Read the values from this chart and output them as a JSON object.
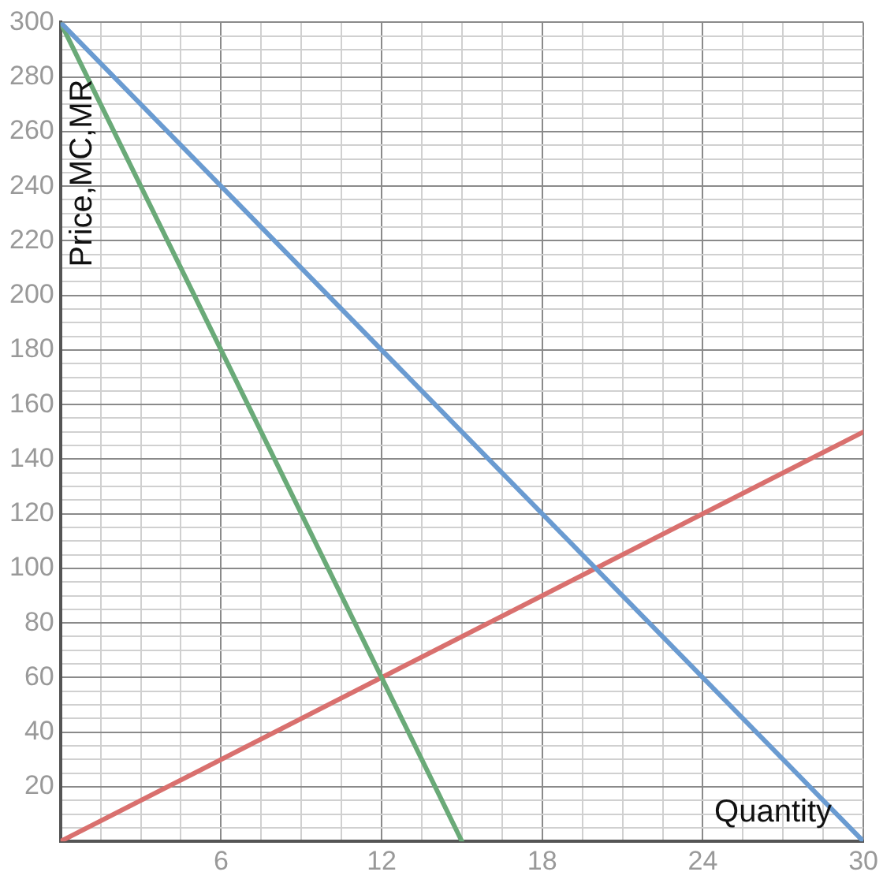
{
  "chart_data": {
    "type": "line",
    "xlabel": "Quantity",
    "ylabel": "Price,MC,MR",
    "series": [
      {
        "color": "#6a9bd1",
        "x": [
          0,
          30
        ],
        "values": [
          300,
          0
        ]
      },
      {
        "color": "#6aaa78",
        "x": [
          0,
          15
        ],
        "values": [
          300,
          0
        ]
      },
      {
        "color": "#d9706e",
        "x": [
          0,
          30
        ],
        "values": [
          0,
          150
        ]
      }
    ],
    "xlim": [
      0,
      30
    ],
    "ylim": [
      0,
      300
    ],
    "xticks": [
      {
        "value": 0,
        "label": null
      },
      {
        "value": 1.5,
        "label": null
      },
      {
        "value": 3,
        "label": null
      },
      {
        "value": 4.5,
        "label": null
      },
      6,
      {
        "value": 7.5,
        "label": null
      },
      {
        "value": 9,
        "label": null
      },
      {
        "value": 10.5,
        "label": null
      },
      12,
      {
        "value": 13.5,
        "label": null
      },
      {
        "value": 15,
        "label": null
      },
      {
        "value": 16.5,
        "label": null
      },
      18,
      {
        "value": 19.5,
        "label": null
      },
      {
        "value": 21,
        "label": null
      },
      {
        "value": 22.5,
        "label": null
      },
      24,
      {
        "value": 25.5,
        "label": null
      },
      {
        "value": 27,
        "label": null
      },
      {
        "value": 28.5,
        "label": null
      },
      30
    ],
    "yticks": [
      {
        "value": 0,
        "label": null
      },
      {
        "value": 5,
        "label": null
      },
      {
        "value": 10,
        "label": null
      },
      {
        "value": 15,
        "label": null
      },
      20,
      {
        "value": 25,
        "label": null
      },
      {
        "value": 30,
        "label": null
      },
      {
        "value": 35,
        "label": null
      },
      40,
      {
        "value": 45,
        "label": null
      },
      {
        "value": 50,
        "label": null
      },
      {
        "value": 55,
        "label": null
      },
      60,
      {
        "value": 65,
        "label": null
      },
      {
        "value": 70,
        "label": null
      },
      {
        "value": 75,
        "label": null
      },
      80,
      {
        "value": 85,
        "label": null
      },
      {
        "value": 90,
        "label": null
      },
      {
        "value": 95,
        "label": null
      },
      100,
      {
        "value": 105,
        "label": null
      },
      {
        "value": 110,
        "label": null
      },
      {
        "value": 115,
        "label": null
      },
      120,
      {
        "value": 125,
        "label": null
      },
      {
        "value": 130,
        "label": null
      },
      {
        "value": 135,
        "label": null
      },
      140,
      {
        "value": 145,
        "label": null
      },
      {
        "value": 150,
        "label": null
      },
      {
        "value": 155,
        "label": null
      },
      160,
      {
        "value": 165,
        "label": null
      },
      {
        "value": 170,
        "label": null
      },
      {
        "value": 175,
        "label": null
      },
      180,
      {
        "value": 185,
        "label": null
      },
      {
        "value": 190,
        "label": null
      },
      {
        "value": 195,
        "label": null
      },
      200,
      {
        "value": 205,
        "label": null
      },
      {
        "value": 210,
        "label": null
      },
      {
        "value": 215,
        "label": null
      },
      220,
      {
        "value": 225,
        "label": null
      },
      {
        "value": 230,
        "label": null
      },
      {
        "value": 235,
        "label": null
      },
      240,
      {
        "value": 245,
        "label": null
      },
      {
        "value": 250,
        "label": null
      },
      {
        "value": 255,
        "label": null
      },
      260,
      {
        "value": 265,
        "label": null
      },
      {
        "value": 270,
        "label": null
      },
      {
        "value": 275,
        "label": null
      },
      280,
      {
        "value": 285,
        "label": null
      },
      {
        "value": 290,
        "label": null
      },
      {
        "value": 295,
        "label": null
      },
      300
    ],
    "grid": true,
    "legend": false,
    "marker": "none",
    "line_style": "solid"
  }
}
